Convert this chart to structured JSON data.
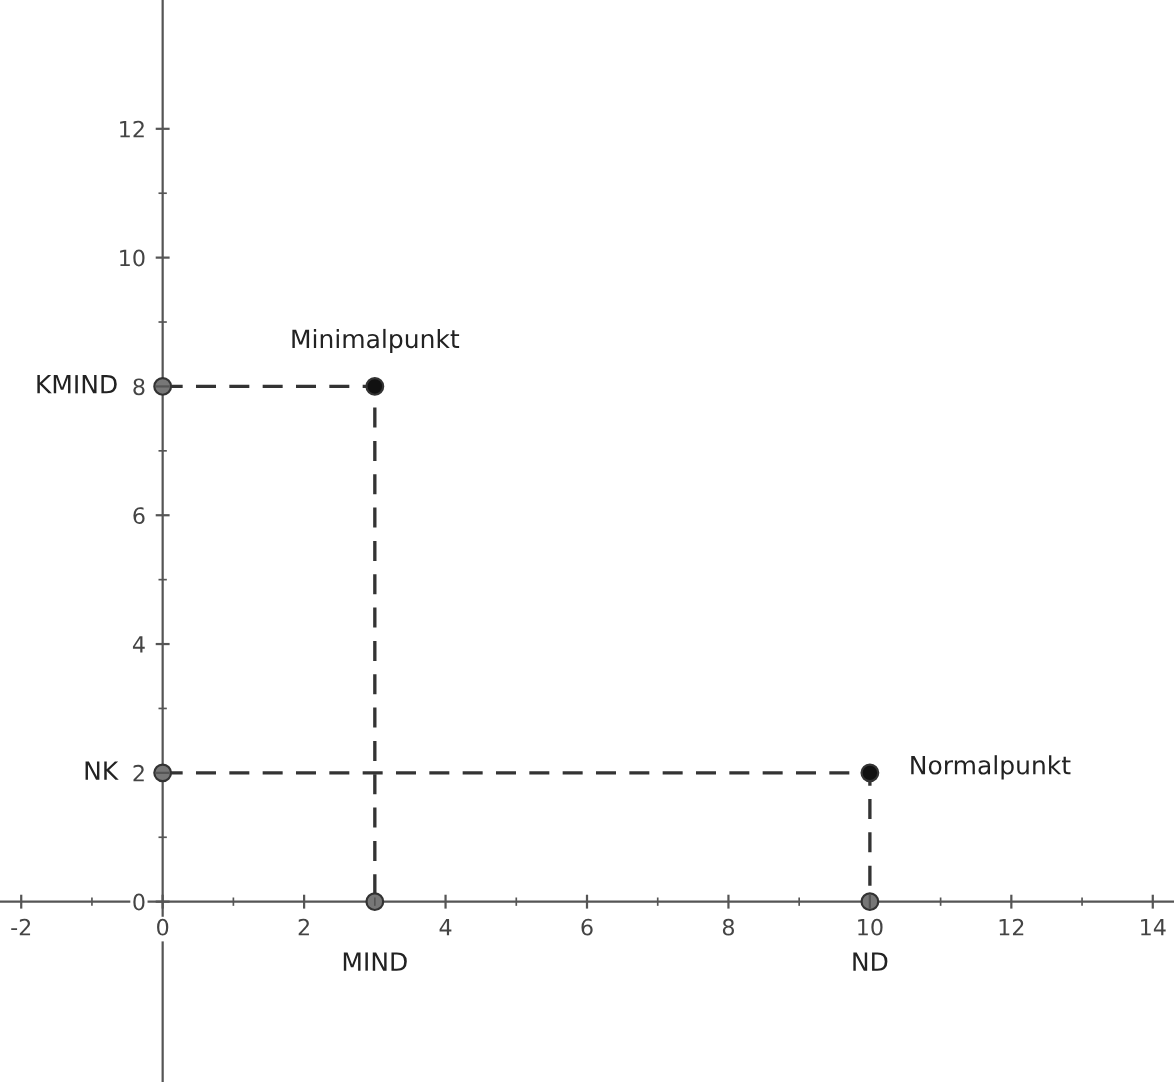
{
  "chart_data": {
    "type": "scatter",
    "series": [
      {
        "type": "line",
        "x": [
          0,
          3,
          3
        ],
        "values": [
          8,
          8,
          0
        ],
        "color": "#333333",
        "line_style": "dashed",
        "marker": "none"
      },
      {
        "type": "line",
        "x": [
          0,
          10,
          10
        ],
        "values": [
          2,
          2,
          0
        ],
        "color": "#333333",
        "line_style": "dashed",
        "marker": "none"
      },
      {
        "type": "scatter",
        "x": [
          3,
          10
        ],
        "values": [
          8,
          2
        ],
        "color": "#111111",
        "marker": "circle"
      },
      {
        "type": "scatter",
        "x": [
          0,
          3,
          0,
          10
        ],
        "values": [
          8,
          0,
          2,
          0
        ],
        "color": "#777777",
        "marker": "circle"
      }
    ],
    "annotations": [
      {
        "text": "Minimalpunkt",
        "x": 3,
        "y": 8
      },
      {
        "text": "Normalpunkt",
        "x": 10,
        "y": 2
      },
      {
        "text": "KMIND",
        "x": 0,
        "y": 8
      },
      {
        "text": "NK",
        "x": 0,
        "y": 2
      },
      {
        "text": "MIND",
        "x": 3,
        "y": 0
      },
      {
        "text": "ND",
        "x": 10,
        "y": 0
      }
    ],
    "xlim": [
      -2.3,
      14.3
    ],
    "ylim": [
      -2.8,
      14.0
    ],
    "xticks": [
      -2,
      0,
      2,
      4,
      6,
      8,
      10,
      12,
      14
    ],
    "yticks": [
      0,
      2,
      4,
      6,
      8,
      10,
      12
    ],
    "grid": false
  }
}
